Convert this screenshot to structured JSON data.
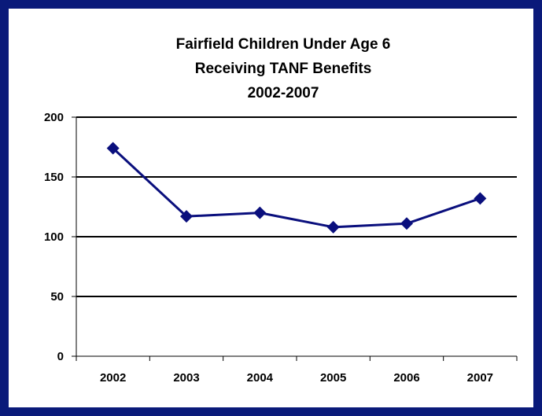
{
  "chart_data": {
    "type": "line",
    "title_lines": [
      "Fairfield Children Under Age 6",
      "Receiving TANF Benefits",
      "2002-2007"
    ],
    "xlabel": "",
    "ylabel": "",
    "categories": [
      "2002",
      "2003",
      "2004",
      "2005",
      "2006",
      "2007"
    ],
    "series": [
      {
        "values": [
          174,
          117,
          120,
          108,
          111,
          132
        ]
      }
    ],
    "ylim": [
      0,
      200
    ],
    "yticks": [
      "0",
      "50",
      "100",
      "150",
      "200"
    ],
    "grid": true,
    "legend": "none",
    "colors": {
      "frame": "#0a1a7a",
      "line": "#0a0f7d",
      "grid": "#000000"
    }
  }
}
